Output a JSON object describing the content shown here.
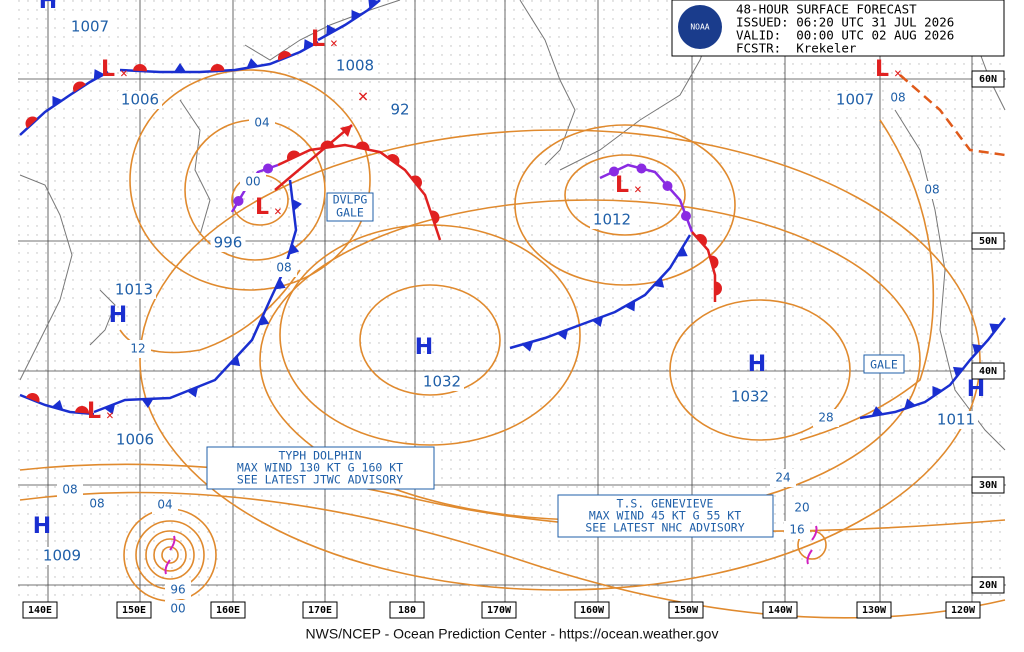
{
  "header": {
    "title": "48-HOUR SURFACE FORECAST",
    "issued": "ISSUED: 06:20 UTC 31 JUL 2026",
    "valid": "VALID:  00:00 UTC 02 AUG 2026",
    "forecaster": "FCSTR:  Krekeler",
    "logo": "NOAA"
  },
  "centers": [
    {
      "symbol": "H",
      "label": "1007"
    },
    {
      "symbol": "L",
      "label": "1006"
    },
    {
      "symbol": "L",
      "label": "1008"
    },
    {
      "symbol": "L",
      "label": "996"
    },
    {
      "symbol": "L",
      "label": "1012"
    },
    {
      "symbol": "L",
      "label": "1007"
    },
    {
      "symbol": "H",
      "label": "1013"
    },
    {
      "symbol": "L",
      "label": "1006"
    },
    {
      "symbol": "H",
      "label": "1032"
    },
    {
      "symbol": "H",
      "label": "1032"
    },
    {
      "symbol": "H",
      "label": "1011"
    },
    {
      "symbol": "H",
      "label": "1009"
    }
  ],
  "forecast_low": {
    "label": "92"
  },
  "isobar_labels": [
    "04",
    "00",
    "08",
    "12",
    "08",
    "08",
    "04",
    "96",
    "00",
    "08",
    "08",
    "28",
    "24",
    "20",
    "16"
  ],
  "latitudes": [
    "60N",
    "50N",
    "40N",
    "30N",
    "20N"
  ],
  "longitudes": [
    "140E",
    "150E",
    "160E",
    "170E",
    "180",
    "170W",
    "160W",
    "150W",
    "140W",
    "130W",
    "120W"
  ],
  "warnings": {
    "dvlpg_gale": [
      "DVLPG",
      "GALE"
    ],
    "gale": "GALE"
  },
  "typhoon": [
    "TYPH DOLPHIN",
    "MAX WIND 130 KT G 160 KT",
    "SEE LATEST JTWC ADVISORY"
  ],
  "storm": [
    "T.S. GENEVIEVE",
    "MAX WIND 45 KT G 55 KT",
    "SEE LATEST NHC ADVISORY"
  ],
  "footer": "NWS/NCEP - Ocean Prediction Center - https://ocean.weather.gov"
}
